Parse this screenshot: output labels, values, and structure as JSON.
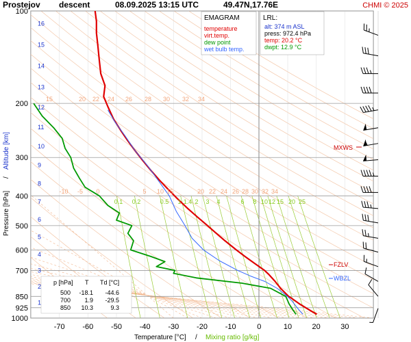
{
  "header": {
    "station": "Prostejov",
    "mode": "descent",
    "datetime": "08.09.2025 13:15 UTC",
    "coords": "49.47N,17.76E",
    "copyright": "CHMI © 2025"
  },
  "legend": {
    "title": "EMAGRAM",
    "items": [
      {
        "label": "temperature",
        "color": "#e00000"
      },
      {
        "label": "virt.temp.",
        "color": "#e00000"
      },
      {
        "label": "dew point",
        "color": "#009900"
      },
      {
        "label": "wet bulb temp.",
        "color": "#3366ff"
      }
    ]
  },
  "lrl": {
    "title": "LRL:",
    "alt": "alt: 374 m ASL",
    "press": "press: 972.4 hPa",
    "temp": "temp: 20.2 °C",
    "dwpt": "dwpt: 12.9 °C"
  },
  "levels_table": {
    "headers": [
      "p [hPa]",
      "T",
      "Td [°C]"
    ],
    "rows": [
      [
        "500",
        "-18.1",
        "-44.6"
      ],
      [
        "700",
        "1.9",
        "-29.5"
      ],
      [
        "850",
        "10.3",
        "9.3"
      ]
    ]
  },
  "markers": {
    "mxws": "MXWS",
    "fzlv": "FZLV",
    "wbzl": "WBZL"
  },
  "chart_data": {
    "type": "line",
    "title": "Prostejov descent 08.09.2025 13:15 UTC 49.47N,17.76E",
    "xlabel": "Temperature [°C]",
    "xlabel_sep": "/",
    "xlabel2": "Mixing ratio [g/kg]",
    "ylabel": "Pressure [hPa]",
    "ylabel_sep": "/",
    "ylabel2": "Altitude [km]",
    "xlim": [
      -80,
      40
    ],
    "ylim": [
      1000,
      100
    ],
    "y_scale": "log",
    "x_ticks": [
      -70,
      -60,
      -50,
      -40,
      -30,
      -20,
      -10,
      0,
      10,
      20,
      30
    ],
    "p_ticks": [
      100,
      200,
      300,
      400,
      500,
      600,
      700,
      850,
      925,
      1000
    ],
    "alt_ticks": [
      {
        "km": 1,
        "p": 890
      },
      {
        "km": 2,
        "p": 790
      },
      {
        "km": 3,
        "p": 700
      },
      {
        "km": 4,
        "p": 620
      },
      {
        "km": 5,
        "p": 545
      },
      {
        "km": 6,
        "p": 478
      },
      {
        "km": 7,
        "p": 418
      },
      {
        "km": 8,
        "p": 365
      },
      {
        "km": 9,
        "p": 318
      },
      {
        "km": 10,
        "p": 276
      },
      {
        "km": 11,
        "p": 239
      },
      {
        "km": 12,
        "p": 206
      },
      {
        "km": 13,
        "p": 177
      },
      {
        "km": 14,
        "p": 151
      },
      {
        "km": 15,
        "p": 129
      },
      {
        "km": 16,
        "p": 110
      }
    ],
    "theta_labels_upper": [
      "15",
      "20",
      "22",
      "24",
      "26",
      "28",
      "30",
      "32",
      "34"
    ],
    "theta_labels_mid": [
      "-10",
      "-5",
      "0",
      "5",
      "10",
      "15",
      "20",
      "22",
      "24",
      "26",
      "28",
      "30",
      "32",
      "34"
    ],
    "mixing_labels": [
      "0.1",
      "0.2",
      "0.5",
      "1",
      "1.4",
      "2",
      "3",
      "4",
      "6",
      "8",
      "10",
      "12",
      "15",
      "20",
      "25"
    ],
    "series": [
      {
        "name": "temperature",
        "color": "#e00000",
        "points": [
          [
            20.2,
            972
          ],
          [
            17.5,
            940
          ],
          [
            14.2,
            900
          ],
          [
            11.2,
            860
          ],
          [
            10.3,
            850
          ],
          [
            7.5,
            800
          ],
          [
            5.6,
            760
          ],
          [
            3.3,
            720
          ],
          [
            1.9,
            700
          ],
          [
            -1.5,
            665
          ],
          [
            -5.0,
            630
          ],
          [
            -8.0,
            600
          ],
          [
            -12.0,
            560
          ],
          [
            -15.5,
            525
          ],
          [
            -18.1,
            500
          ],
          [
            -21.5,
            470
          ],
          [
            -25.0,
            440
          ],
          [
            -28.5,
            410
          ],
          [
            -32.0,
            380
          ],
          [
            -35.0,
            355
          ],
          [
            -38.0,
            330
          ],
          [
            -41.0,
            305
          ],
          [
            -43.5,
            285
          ],
          [
            -46.0,
            265
          ],
          [
            -48.5,
            245
          ],
          [
            -51.0,
            225
          ],
          [
            -53.0,
            205
          ],
          [
            -54.5,
            190
          ],
          [
            -54.0,
            175
          ],
          [
            -55.5,
            160
          ],
          [
            -56.0,
            145
          ],
          [
            -56.5,
            130
          ],
          [
            -57.0,
            118
          ],
          [
            -57.0,
            108
          ],
          [
            -57.5,
            100
          ]
        ]
      },
      {
        "name": "dew point",
        "color": "#009900",
        "points": [
          [
            12.9,
            972
          ],
          [
            11.8,
            940
          ],
          [
            10.5,
            900
          ],
          [
            9.8,
            870
          ],
          [
            9.3,
            850
          ],
          [
            4.0,
            800
          ],
          [
            -6.0,
            770
          ],
          [
            -22.0,
            740
          ],
          [
            -30.0,
            715
          ],
          [
            -29.5,
            700
          ],
          [
            -36.0,
            680
          ],
          [
            -33.0,
            655
          ],
          [
            -38.0,
            630
          ],
          [
            -45.0,
            600
          ],
          [
            -44.0,
            560
          ],
          [
            -46.0,
            530
          ],
          [
            -44.6,
            500
          ],
          [
            -50.0,
            480
          ],
          [
            -49.0,
            455
          ],
          [
            -53.0,
            430
          ],
          [
            -56.0,
            400
          ],
          [
            -61.0,
            375
          ],
          [
            -63.0,
            350
          ],
          [
            -65.0,
            325
          ],
          [
            -66.0,
            300
          ],
          [
            -68.0,
            280
          ],
          [
            -69.0,
            260
          ],
          [
            -72.0,
            240
          ],
          [
            -76.0,
            220
          ],
          [
            -79.0,
            200
          ]
        ]
      },
      {
        "name": "wet bulb temp.",
        "color": "#3366ff",
        "points": [
          [
            15.3,
            972
          ],
          [
            13.5,
            930
          ],
          [
            11.5,
            880
          ],
          [
            9.9,
            850
          ],
          [
            6.3,
            800
          ],
          [
            2.0,
            760
          ],
          [
            -3.0,
            730
          ],
          [
            -7.5,
            700
          ],
          [
            -14.0,
            650
          ],
          [
            -19.5,
            600
          ],
          [
            -23.5,
            550
          ],
          [
            -26.0,
            500
          ],
          [
            -29.0,
            450
          ],
          [
            -31.5,
            400
          ],
          [
            -35.0,
            360
          ],
          [
            -39.0,
            320
          ],
          [
            -43.5,
            285
          ],
          [
            -47.0,
            255
          ],
          [
            -50.5,
            230
          ],
          [
            -53.0,
            210
          ]
        ]
      }
    ],
    "wind_barbs": [
      {
        "p": 120,
        "dir": 290,
        "kt": 25
      },
      {
        "p": 140,
        "dir": 280,
        "kt": 30
      },
      {
        "p": 160,
        "dir": 270,
        "kt": 35
      },
      {
        "p": 185,
        "dir": 270,
        "kt": 40
      },
      {
        "p": 210,
        "dir": 260,
        "kt": 45
      },
      {
        "p": 240,
        "dir": 260,
        "kt": 50
      },
      {
        "p": 270,
        "dir": 260,
        "kt": 55
      },
      {
        "p": 305,
        "dir": 265,
        "kt": 50
      },
      {
        "p": 345,
        "dir": 270,
        "kt": 45
      },
      {
        "p": 390,
        "dir": 270,
        "kt": 40
      },
      {
        "p": 440,
        "dir": 275,
        "kt": 35
      },
      {
        "p": 490,
        "dir": 280,
        "kt": 30
      },
      {
        "p": 550,
        "dir": 280,
        "kt": 25
      },
      {
        "p": 610,
        "dir": 285,
        "kt": 20
      },
      {
        "p": 680,
        "dir": 290,
        "kt": 15
      },
      {
        "p": 760,
        "dir": 300,
        "kt": 10
      },
      {
        "p": 850,
        "dir": 320,
        "kt": 10
      },
      {
        "p": 930,
        "dir": 200,
        "kt": 5
      }
    ]
  }
}
